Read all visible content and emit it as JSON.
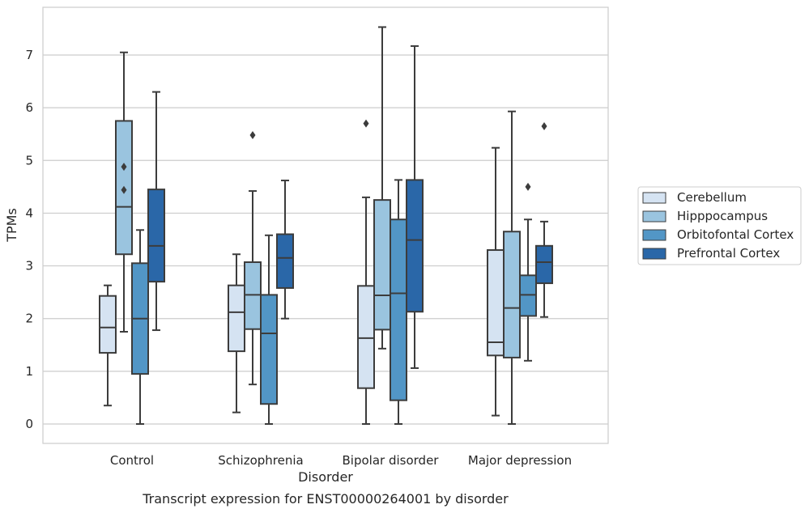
{
  "chart_data": {
    "type": "box",
    "title": "Transcript expression for ENST00000264001 by disorder",
    "xlabel": "Disorder",
    "ylabel": "TPMs",
    "ylim": [
      -0.35,
      7.9
    ],
    "yticks": [
      0,
      1,
      2,
      3,
      4,
      5,
      6,
      7
    ],
    "grid": true,
    "legend_position": "right",
    "categories": [
      "Control",
      "Schizophrenia",
      "Bipolar disorder",
      "Major depression"
    ],
    "series": [
      {
        "name": "Cerebellum",
        "color": "#d5e3f2",
        "boxes": [
          {
            "whislo": 0.35,
            "q1": 1.35,
            "med": 1.83,
            "q3": 2.43,
            "whishi": 2.63,
            "fliers": []
          },
          {
            "whislo": 0.22,
            "q1": 1.38,
            "med": 2.12,
            "q3": 2.63,
            "whishi": 3.22,
            "fliers": []
          },
          {
            "whislo": 0.0,
            "q1": 0.68,
            "med": 1.63,
            "q3": 2.62,
            "whishi": 4.3,
            "fliers": [
              5.7
            ]
          },
          {
            "whislo": 0.16,
            "q1": 1.3,
            "med": 1.55,
            "q3": 3.3,
            "whishi": 5.24,
            "fliers": []
          }
        ]
      },
      {
        "name": "Hipppocampus",
        "color": "#9ac4df",
        "boxes": [
          {
            "whislo": 1.75,
            "q1": 3.22,
            "med": 4.12,
            "q3": 5.75,
            "whishi": 7.05,
            "fliers": [
              4.88,
              4.44
            ]
          },
          {
            "whislo": 0.75,
            "q1": 1.8,
            "med": 2.45,
            "q3": 3.07,
            "whishi": 4.42,
            "fliers": [
              5.48
            ]
          },
          {
            "whislo": 1.43,
            "q1": 1.79,
            "med": 2.44,
            "q3": 4.25,
            "whishi": 7.53,
            "fliers": []
          },
          {
            "whislo": 0.0,
            "q1": 1.26,
            "med": 2.2,
            "q3": 3.65,
            "whishi": 5.93,
            "fliers": []
          }
        ]
      },
      {
        "name": "Orbitofontal Cortex",
        "color": "#5296c6",
        "boxes": [
          {
            "whislo": 0.0,
            "q1": 0.95,
            "med": 2.0,
            "q3": 3.05,
            "whishi": 3.68,
            "fliers": []
          },
          {
            "whislo": 0.0,
            "q1": 0.38,
            "med": 1.72,
            "q3": 2.45,
            "whishi": 3.58,
            "fliers": []
          },
          {
            "whislo": 0.0,
            "q1": 0.45,
            "med": 2.48,
            "q3": 3.88,
            "whishi": 4.63,
            "fliers": []
          },
          {
            "whislo": 1.2,
            "q1": 2.05,
            "med": 2.45,
            "q3": 2.82,
            "whishi": 3.88,
            "fliers": [
              4.5
            ]
          }
        ]
      },
      {
        "name": "Prefrontal Cortex",
        "color": "#2a67a8",
        "boxes": [
          {
            "whislo": 1.78,
            "q1": 2.7,
            "med": 3.38,
            "q3": 4.45,
            "whishi": 6.3,
            "fliers": []
          },
          {
            "whislo": 2.0,
            "q1": 2.58,
            "med": 3.15,
            "q3": 3.6,
            "whishi": 4.62,
            "fliers": []
          },
          {
            "whislo": 1.06,
            "q1": 2.13,
            "med": 3.49,
            "q3": 4.63,
            "whishi": 7.17,
            "fliers": []
          },
          {
            "whislo": 2.03,
            "q1": 2.67,
            "med": 3.07,
            "q3": 3.38,
            "whishi": 3.84,
            "fliers": [
              5.65
            ]
          }
        ]
      }
    ]
  }
}
